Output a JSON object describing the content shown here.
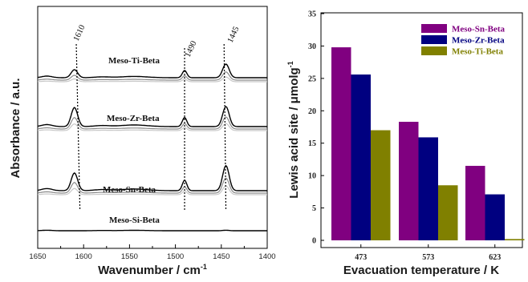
{
  "chart_data": [
    {
      "type": "line",
      "xlabel": "Wavenumber / cm",
      "xlabel_sup": "-1",
      "ylabel": "Absorbance / a.u.",
      "xlim": [
        1650,
        1400
      ],
      "xticks": [
        "1650",
        "1600",
        "1550",
        "1500",
        "1450",
        "1400"
      ],
      "peaks": [
        "1610",
        "1490",
        "1445"
      ],
      "series": [
        {
          "name": "Meso-Ti-Beta",
          "peak_heights": [
            0.5,
            0.45,
            0.85
          ]
        },
        {
          "name": "Meso-Zr-Beta",
          "peak_heights": [
            0.95,
            0.45,
            1.0
          ]
        },
        {
          "name": "Meso-Sn-Beta",
          "peak_heights": [
            0.85,
            0.5,
            1.2
          ]
        },
        {
          "name": "Meso-Si-Beta",
          "peak_heights": [
            0,
            0,
            0.1
          ]
        }
      ]
    },
    {
      "type": "bar",
      "xlabel": "Evacuation temperature / K",
      "ylabel": "Lewis acid site / μmolg",
      "ylabel_sup": "-1",
      "ylim": [
        0,
        35
      ],
      "yticks": [
        "0",
        "5",
        "10",
        "15",
        "20",
        "25",
        "30",
        "35"
      ],
      "categories": [
        "473",
        "573",
        "623"
      ],
      "series": [
        {
          "name": "Meso-Sn-Beta",
          "color": "#800080",
          "values": [
            29.8,
            18.3,
            11.5
          ]
        },
        {
          "name": "Meso-Zr-Beta",
          "color": "#000080",
          "values": [
            25.6,
            15.9,
            7.1
          ]
        },
        {
          "name": "Meso-Ti-Beta",
          "color": "#808000",
          "values": [
            17.0,
            8.5,
            0.2
          ]
        }
      ],
      "legend_position": "top-right"
    }
  ]
}
